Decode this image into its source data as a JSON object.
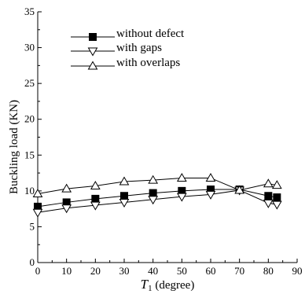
{
  "chart_data": {
    "type": "line",
    "x": [
      0,
      10,
      20,
      30,
      40,
      50,
      60,
      70,
      80,
      83
    ],
    "series": [
      {
        "name": "without defect",
        "marker": "filled-square",
        "values": [
          7.8,
          8.4,
          8.9,
          9.3,
          9.7,
          10.0,
          10.2,
          10.2,
          9.3,
          9.1
        ]
      },
      {
        "name": "with gaps",
        "marker": "hollow-down-triangle",
        "values": [
          7.0,
          7.6,
          8.0,
          8.4,
          8.8,
          9.2,
          9.5,
          10.1,
          8.3,
          8.1
        ]
      },
      {
        "name": "with overlaps",
        "marker": "hollow-up-triangle",
        "values": [
          9.6,
          10.3,
          10.7,
          11.3,
          11.5,
          11.8,
          11.8,
          10.1,
          11.0,
          10.8
        ]
      }
    ],
    "xlim": [
      0,
      90
    ],
    "ylim": [
      0,
      35
    ],
    "xticks": [
      "0",
      "10",
      "20",
      "30",
      "40",
      "50",
      "60",
      "70",
      "80",
      "90"
    ],
    "yticks": [
      "0",
      "5",
      "10",
      "15",
      "20",
      "25",
      "30",
      "35"
    ],
    "xlabel": {
      "symbol": "T",
      "subscript": "1",
      "rest": " (degree)"
    },
    "ylabel": "Buckling load (KN)",
    "legend_position": "top-left",
    "grid": false,
    "color": "#000000"
  }
}
